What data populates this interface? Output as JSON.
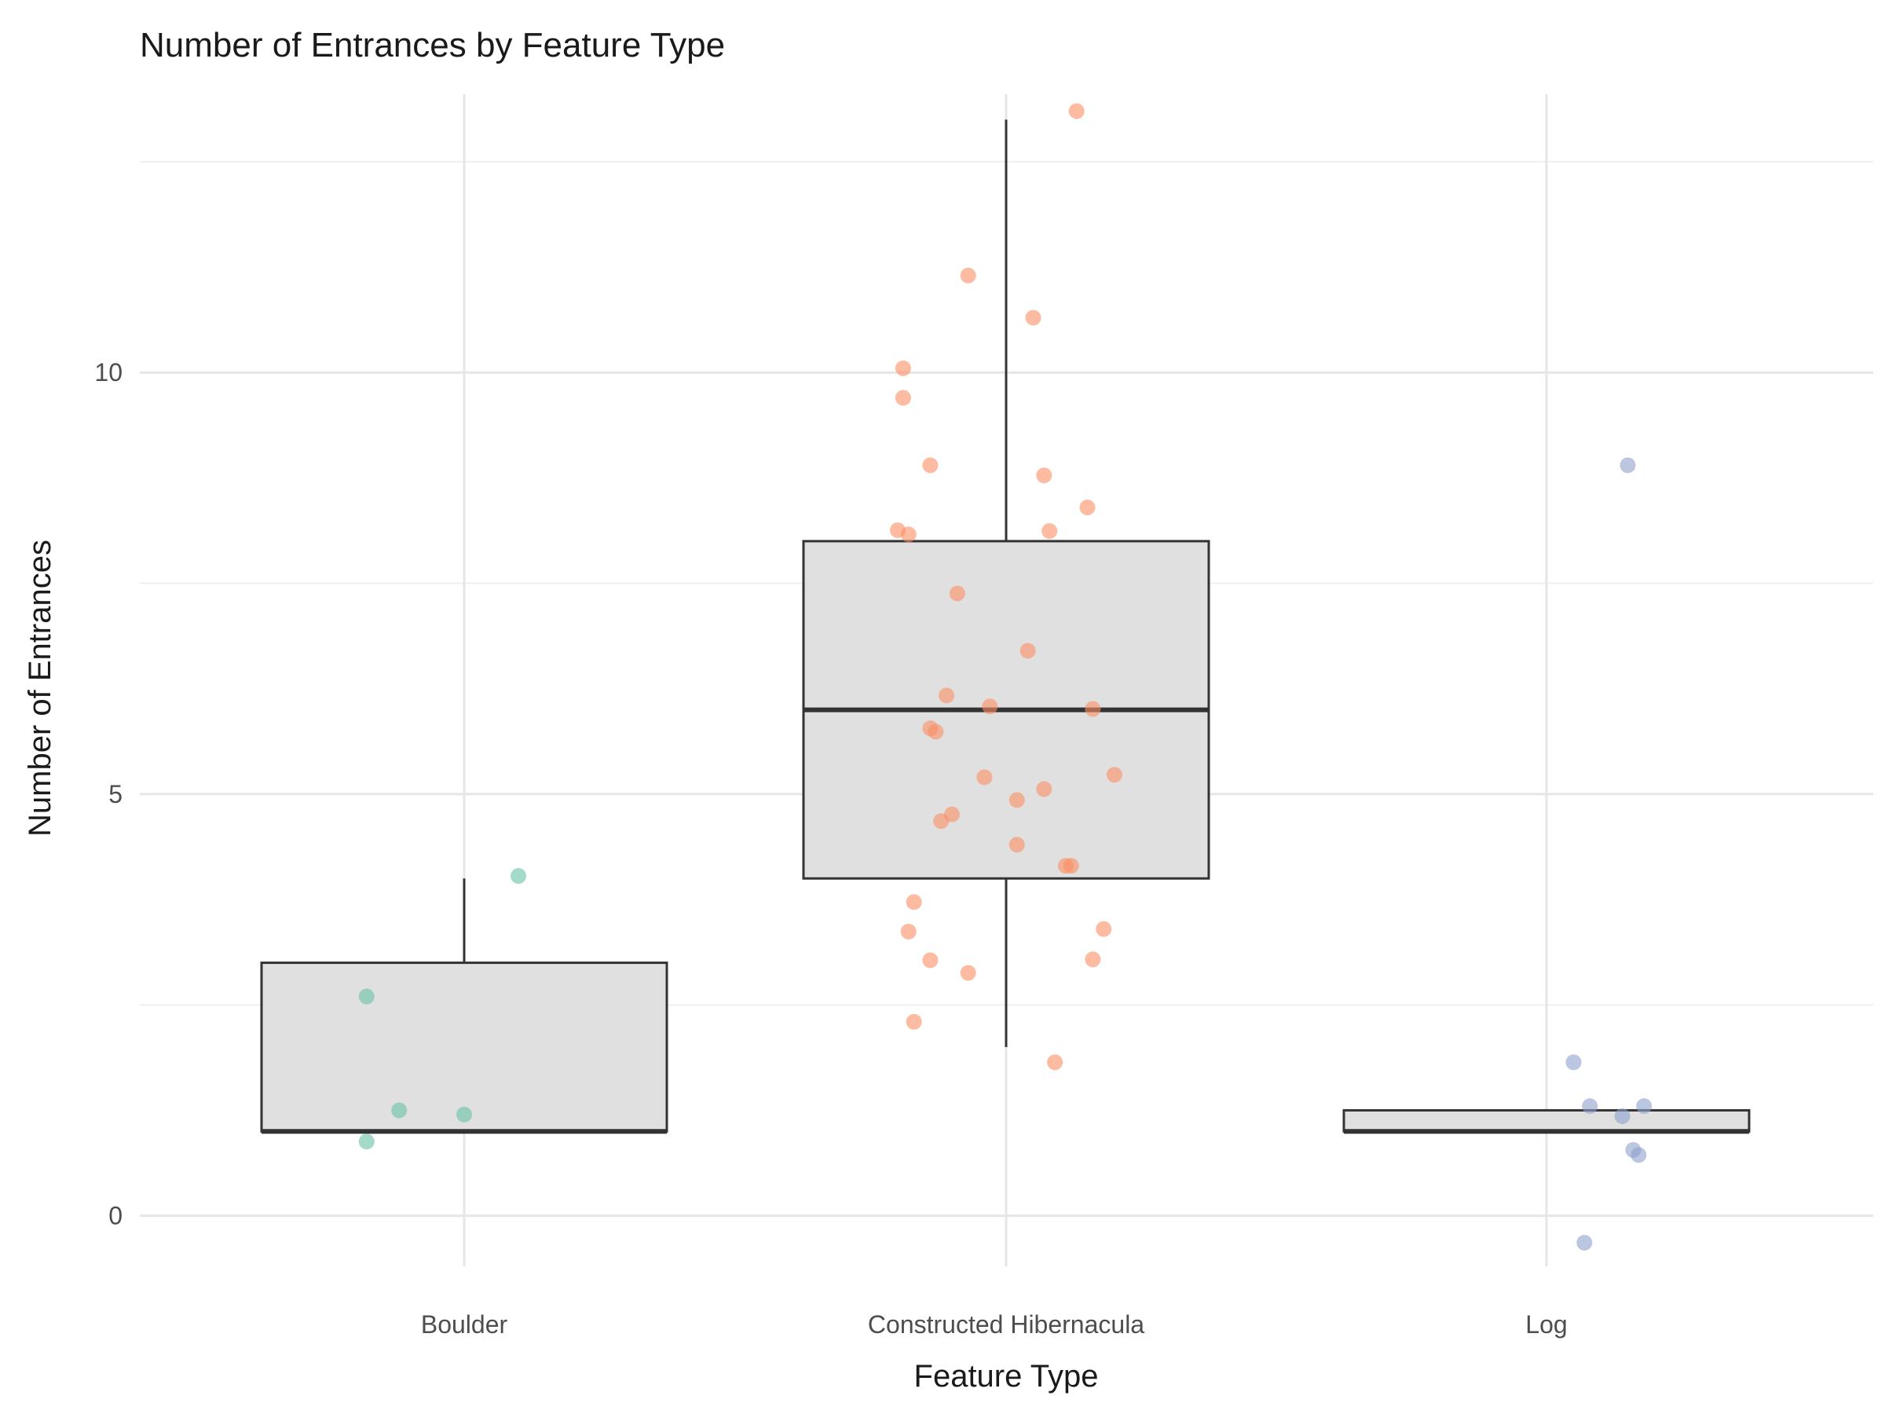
{
  "chart_data": {
    "type": "box",
    "title": "Number of Entrances by Feature Type",
    "xlabel": "Feature Type",
    "ylabel": "Number of Entrances",
    "categories": [
      "Boulder",
      "Constructed Hibernacula",
      "Log"
    ],
    "ylim": [
      -0.6,
      13.3
    ],
    "yticks": [
      0,
      5,
      10
    ],
    "grid": true,
    "legend": "none",
    "colors": {
      "Boulder": "#66c2a5",
      "Constructed Hibernacula": "#fc8d62",
      "Log": "#8da0cb"
    },
    "box_colors": {
      "fill": "#e0e0e0",
      "stroke": "#333333"
    },
    "boxes": [
      {
        "category": "Boulder",
        "q1": 1,
        "median": 1,
        "q3": 3,
        "whisker_low": 1,
        "whisker_high": 4
      },
      {
        "category": "Constructed Hibernacula",
        "q1": 4,
        "median": 6,
        "q3": 8,
        "whisker_low": 2,
        "whisker_high": 13
      },
      {
        "category": "Log",
        "q1": 1,
        "median": 1,
        "q3": 1.25,
        "whisker_low": 1,
        "whisker_high": 1.25
      }
    ],
    "points": [
      {
        "category": "Boulder",
        "jitter": -0.18,
        "y": 2.6
      },
      {
        "category": "Boulder",
        "jitter": 0.1,
        "y": 4.03
      },
      {
        "category": "Boulder",
        "jitter": -0.12,
        "y": 1.25
      },
      {
        "category": "Boulder",
        "jitter": 0.0,
        "y": 1.2
      },
      {
        "category": "Boulder",
        "jitter": -0.18,
        "y": 0.88
      },
      {
        "category": "Constructed Hibernacula",
        "jitter": 0.13,
        "y": 13.1
      },
      {
        "category": "Constructed Hibernacula",
        "jitter": -0.07,
        "y": 11.15
      },
      {
        "category": "Constructed Hibernacula",
        "jitter": 0.05,
        "y": 10.65
      },
      {
        "category": "Constructed Hibernacula",
        "jitter": -0.19,
        "y": 10.05
      },
      {
        "category": "Constructed Hibernacula",
        "jitter": -0.19,
        "y": 9.7
      },
      {
        "category": "Constructed Hibernacula",
        "jitter": -0.14,
        "y": 8.9
      },
      {
        "category": "Constructed Hibernacula",
        "jitter": 0.07,
        "y": 8.78
      },
      {
        "category": "Constructed Hibernacula",
        "jitter": 0.15,
        "y": 8.4
      },
      {
        "category": "Constructed Hibernacula",
        "jitter": -0.2,
        "y": 8.13
      },
      {
        "category": "Constructed Hibernacula",
        "jitter": -0.18,
        "y": 8.08
      },
      {
        "category": "Constructed Hibernacula",
        "jitter": 0.08,
        "y": 8.12
      },
      {
        "category": "Constructed Hibernacula",
        "jitter": -0.09,
        "y": 7.38
      },
      {
        "category": "Constructed Hibernacula",
        "jitter": 0.04,
        "y": 6.7
      },
      {
        "category": "Constructed Hibernacula",
        "jitter": -0.11,
        "y": 6.17
      },
      {
        "category": "Constructed Hibernacula",
        "jitter": -0.03,
        "y": 6.04
      },
      {
        "category": "Constructed Hibernacula",
        "jitter": 0.16,
        "y": 6.01
      },
      {
        "category": "Constructed Hibernacula",
        "jitter": -0.14,
        "y": 5.78
      },
      {
        "category": "Constructed Hibernacula",
        "jitter": -0.13,
        "y": 5.74
      },
      {
        "category": "Constructed Hibernacula",
        "jitter": 0.2,
        "y": 5.23
      },
      {
        "category": "Constructed Hibernacula",
        "jitter": -0.04,
        "y": 5.2
      },
      {
        "category": "Constructed Hibernacula",
        "jitter": 0.07,
        "y": 5.06
      },
      {
        "category": "Constructed Hibernacula",
        "jitter": 0.02,
        "y": 4.93
      },
      {
        "category": "Constructed Hibernacula",
        "jitter": -0.1,
        "y": 4.76
      },
      {
        "category": "Constructed Hibernacula",
        "jitter": -0.12,
        "y": 4.68
      },
      {
        "category": "Constructed Hibernacula",
        "jitter": 0.02,
        "y": 4.4
      },
      {
        "category": "Constructed Hibernacula",
        "jitter": 0.11,
        "y": 4.15
      },
      {
        "category": "Constructed Hibernacula",
        "jitter": 0.12,
        "y": 4.15
      },
      {
        "category": "Constructed Hibernacula",
        "jitter": -0.17,
        "y": 3.72
      },
      {
        "category": "Constructed Hibernacula",
        "jitter": 0.18,
        "y": 3.4
      },
      {
        "category": "Constructed Hibernacula",
        "jitter": -0.18,
        "y": 3.37
      },
      {
        "category": "Constructed Hibernacula",
        "jitter": -0.14,
        "y": 3.03
      },
      {
        "category": "Constructed Hibernacula",
        "jitter": 0.16,
        "y": 3.04
      },
      {
        "category": "Constructed Hibernacula",
        "jitter": -0.07,
        "y": 2.88
      },
      {
        "category": "Constructed Hibernacula",
        "jitter": -0.17,
        "y": 2.3
      },
      {
        "category": "Constructed Hibernacula",
        "jitter": 0.09,
        "y": 1.82
      },
      {
        "category": "Log",
        "jitter": 0.15,
        "y": 8.9
      },
      {
        "category": "Log",
        "jitter": 0.05,
        "y": 1.82
      },
      {
        "category": "Log",
        "jitter": 0.08,
        "y": 1.3
      },
      {
        "category": "Log",
        "jitter": 0.18,
        "y": 1.3
      },
      {
        "category": "Log",
        "jitter": 0.14,
        "y": 1.18
      },
      {
        "category": "Log",
        "jitter": 0.16,
        "y": 0.78
      },
      {
        "category": "Log",
        "jitter": 0.17,
        "y": 0.72
      },
      {
        "category": "Log",
        "jitter": 0.07,
        "y": -0.32
      }
    ]
  }
}
